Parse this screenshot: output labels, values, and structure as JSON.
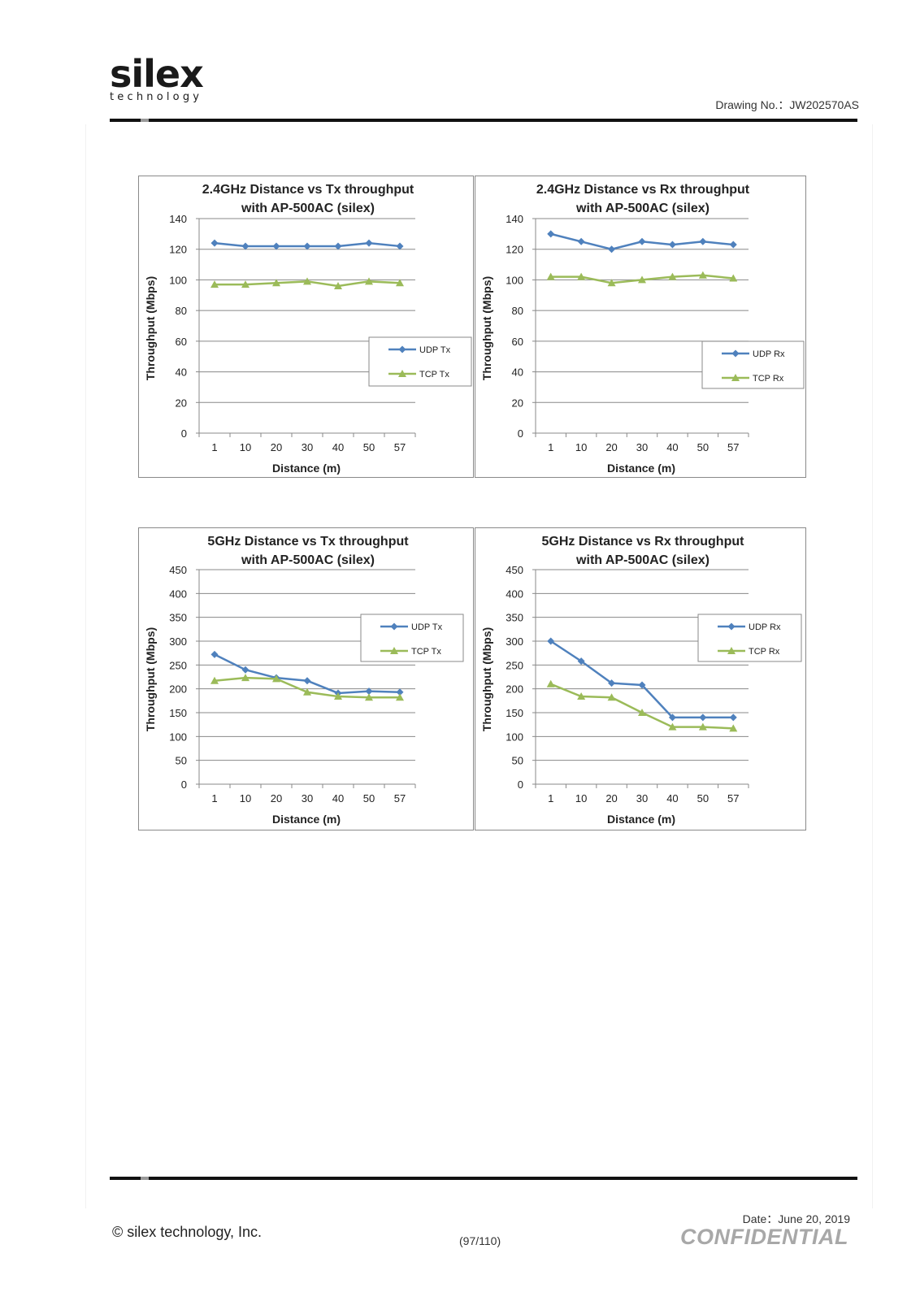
{
  "header": {
    "logo_text": "silex",
    "logo_sub": "technology",
    "drawing_no": "Drawing  No.：JW202570AS"
  },
  "footer": {
    "copyright": "© silex technology, Inc.",
    "page": "(97/110)",
    "date": "Date：June  20, 2019",
    "confidential": "CONFIDENTIAL"
  },
  "colors": {
    "udp": "#4f81bd",
    "tcp": "#9bbb59",
    "grid": "#888888",
    "axis": "#888888"
  },
  "chart_data": [
    {
      "type": "line",
      "title": [
        "2.4GHz Distance vs Tx throughput",
        "with AP-500AC (silex)"
      ],
      "xlabel": "Distance (m)",
      "ylabel": "Throughput (Mbps)",
      "categories": [
        "1",
        "10",
        "20",
        "30",
        "40",
        "50",
        "57"
      ],
      "ylim": [
        0,
        140
      ],
      "yticks": [
        0,
        20,
        40,
        60,
        80,
        100,
        120,
        140
      ],
      "grid": true,
      "legend_position": "right",
      "series": [
        {
          "name": "UDP Tx",
          "marker": "diamond",
          "color": "#4f81bd",
          "values": [
            124,
            122,
            122,
            122,
            122,
            124,
            122
          ]
        },
        {
          "name": "TCP Tx",
          "marker": "triangle",
          "color": "#9bbb59",
          "values": [
            97,
            97,
            98,
            99,
            96,
            99,
            98
          ]
        }
      ]
    },
    {
      "type": "line",
      "title": [
        "2.4GHz Distance vs Rx throughput",
        "with AP-500AC (silex)"
      ],
      "xlabel": "Distance (m)",
      "ylabel": "Throughput (Mbps)",
      "categories": [
        "1",
        "10",
        "20",
        "30",
        "40",
        "50",
        "57"
      ],
      "ylim": [
        0,
        140
      ],
      "yticks": [
        0,
        20,
        40,
        60,
        80,
        100,
        120,
        140
      ],
      "grid": true,
      "legend_position": "right",
      "series": [
        {
          "name": "UDP Rx",
          "marker": "diamond",
          "color": "#4f81bd",
          "values": [
            130,
            125,
            120,
            125,
            123,
            125,
            123
          ]
        },
        {
          "name": "TCP Rx",
          "marker": "triangle",
          "color": "#9bbb59",
          "values": [
            102,
            102,
            98,
            100,
            102,
            103,
            101
          ]
        }
      ]
    },
    {
      "type": "line",
      "title": [
        "5GHz Distance vs Tx throughput",
        "with AP-500AC (silex)"
      ],
      "xlabel": "Distance (m)",
      "ylabel": "Throughput (Mbps)",
      "categories": [
        "1",
        "10",
        "20",
        "30",
        "40",
        "50",
        "57"
      ],
      "ylim": [
        0,
        450
      ],
      "yticks": [
        0,
        50,
        100,
        150,
        200,
        250,
        300,
        350,
        400,
        450
      ],
      "grid": true,
      "legend_position": "top-right",
      "series": [
        {
          "name": "UDP Tx",
          "marker": "diamond",
          "color": "#4f81bd",
          "values": [
            272,
            240,
            223,
            217,
            191,
            195,
            193
          ]
        },
        {
          "name": "TCP Tx",
          "marker": "triangle",
          "color": "#9bbb59",
          "values": [
            217,
            223,
            221,
            193,
            184,
            182,
            182
          ]
        }
      ]
    },
    {
      "type": "line",
      "title": [
        "5GHz Distance vs Rx throughput",
        "with AP-500AC (silex)"
      ],
      "xlabel": "Distance (m)",
      "ylabel": "Throughput (Mbps)",
      "categories": [
        "1",
        "10",
        "20",
        "30",
        "40",
        "50",
        "57"
      ],
      "ylim": [
        0,
        450
      ],
      "yticks": [
        0,
        50,
        100,
        150,
        200,
        250,
        300,
        350,
        400,
        450
      ],
      "grid": true,
      "legend_position": "top-right",
      "series": [
        {
          "name": "UDP Rx",
          "marker": "diamond",
          "color": "#4f81bd",
          "values": [
            300,
            258,
            212,
            208,
            140,
            140,
            140
          ]
        },
        {
          "name": "TCP Rx",
          "marker": "triangle",
          "color": "#9bbb59",
          "values": [
            210,
            184,
            182,
            150,
            120,
            120,
            117
          ]
        }
      ]
    }
  ]
}
